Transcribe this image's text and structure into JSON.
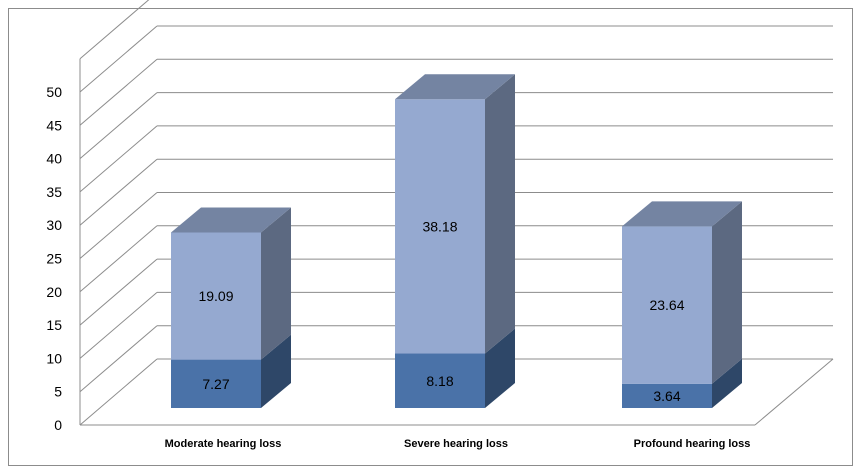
{
  "chart_data": {
    "type": "bar",
    "stacked": true,
    "three_d": true,
    "categories": [
      "Moderate hearing loss",
      "Severe hearing loss",
      "Profound hearing loss"
    ],
    "series": [
      {
        "values": [
          7.27,
          8.18,
          3.64
        ],
        "color": "#4A72A8"
      },
      {
        "values": [
          19.09,
          38.18,
          23.64
        ],
        "color": "#95A9D0"
      }
    ],
    "data_labels": [
      [
        "7.27",
        "8.18",
        "3.64"
      ],
      [
        "19.09",
        "38.18",
        "23.64"
      ]
    ],
    "ylim": [
      0,
      50
    ],
    "yticks": [
      0,
      5,
      10,
      15,
      20,
      25,
      30,
      35,
      40,
      45,
      50
    ],
    "grid": true,
    "legend": "none"
  }
}
